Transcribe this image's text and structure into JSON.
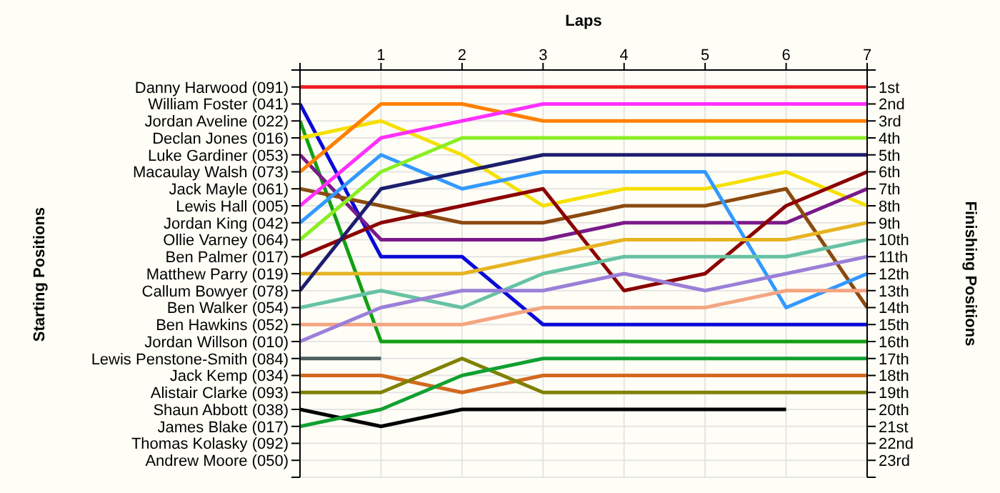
{
  "chart_data": {
    "type": "line",
    "xlabel": "Laps",
    "annotations": [
      "Starting Positions"
    ],
    "y2label": "Finishing Positions",
    "x": [
      0,
      1,
      2,
      3,
      4,
      5,
      6,
      7
    ],
    "xlim": [
      0,
      7
    ],
    "xticks": [
      {
        "value": 0,
        "label": null
      },
      1,
      2,
      3,
      4,
      5,
      6,
      7
    ],
    "y_categories": [
      "Danny Harwood (091)",
      "William Foster (041)",
      "Jordan Aveline (022)",
      "Declan Jones (016)",
      "Luke Gardiner (053)",
      "Macaulay Walsh (073)",
      "Jack Mayle (061)",
      "Lewis Hall (005)",
      "Jordan King (042)",
      "Ollie Varney (064)",
      "Ben Palmer (017)",
      "Matthew Parry (019)",
      "Callum Bowyer (078)",
      "Ben Walker (054)",
      "Ben Hawkins (052)",
      "Jordan Willson (010)",
      "Lewis Penstone-Smith (084)",
      "Jack Kemp (034)",
      "Alistair Clarke (093)",
      "Shaun Abbott (038)",
      "James Blake (017)",
      "Thomas Kolasky (092)",
      "Andrew Moore (050)"
    ],
    "y2lim": [
      24,
      0
    ],
    "y2ticks": [
      {
        "value": 0,
        "label": null
      },
      {
        "value": 1,
        "label": "1st"
      },
      {
        "value": 2,
        "label": "2nd"
      },
      {
        "value": 3,
        "label": "3rd"
      },
      {
        "value": 4,
        "label": "4th"
      },
      {
        "value": 5,
        "label": "5th"
      },
      {
        "value": 6,
        "label": "6th"
      },
      {
        "value": 7,
        "label": "7th"
      },
      {
        "value": 8,
        "label": "8th"
      },
      {
        "value": 9,
        "label": "9th"
      },
      {
        "value": 10,
        "label": "10th"
      },
      {
        "value": 11,
        "label": "11th"
      },
      {
        "value": 12,
        "label": "12th"
      },
      {
        "value": 13,
        "label": "13th"
      },
      {
        "value": 14,
        "label": "14th"
      },
      {
        "value": 15,
        "label": "15th"
      },
      {
        "value": 16,
        "label": "16th"
      },
      {
        "value": 17,
        "label": "17th"
      },
      {
        "value": 18,
        "label": "18th"
      },
      {
        "value": 19,
        "label": "19th"
      },
      {
        "value": 20,
        "label": "20th"
      },
      {
        "value": 21,
        "label": "21st"
      },
      {
        "value": 22,
        "label": "22nd"
      },
      {
        "value": 23,
        "label": "23rd"
      },
      {
        "value": 24,
        "label": null
      }
    ],
    "grid": true,
    "marker": "none",
    "legend": false,
    "series": [
      {
        "axis": "y2",
        "color": "#ee1c25",
        "values": [
          1,
          1,
          1,
          1,
          1,
          1,
          1,
          1
        ]
      },
      {
        "axis": "y2",
        "color": "#0a0ad8",
        "values": [
          2,
          11,
          11,
          15,
          15,
          15,
          15,
          15
        ]
      },
      {
        "axis": "y2",
        "color": "#12a012",
        "values": [
          3,
          16,
          16,
          16,
          16,
          16,
          16,
          16
        ]
      },
      {
        "axis": "y2",
        "color": "#f5e000",
        "values": [
          4,
          3,
          5,
          8,
          7,
          7,
          6,
          8
        ]
      },
      {
        "axis": "y2",
        "color": "#7a1a8a",
        "values": [
          5,
          10,
          10,
          10,
          9,
          9,
          9,
          7
        ]
      },
      {
        "axis": "y2",
        "color": "#ff8000",
        "values": [
          6,
          2,
          2,
          3,
          3,
          3,
          3,
          3
        ]
      },
      {
        "axis": "y2",
        "color": "#8b4a10",
        "values": [
          7,
          8,
          9,
          9,
          8,
          8,
          7,
          14
        ]
      },
      {
        "axis": "y2",
        "color": "#ff30ff",
        "values": [
          8,
          4,
          3,
          2,
          2,
          2,
          2,
          2
        ]
      },
      {
        "axis": "y2",
        "color": "#3399ff",
        "values": [
          9,
          5,
          7,
          6,
          6,
          6,
          14,
          12
        ]
      },
      {
        "axis": "y2",
        "color": "#88ee22",
        "values": [
          10,
          6,
          4,
          4,
          4,
          4,
          4,
          4
        ]
      },
      {
        "axis": "y2",
        "color": "#8b0000",
        "values": [
          11,
          9,
          8,
          7,
          13,
          12,
          8,
          6
        ]
      },
      {
        "axis": "y2",
        "color": "#e6b422",
        "values": [
          12,
          12,
          12,
          11,
          10,
          10,
          10,
          9
        ]
      },
      {
        "axis": "y2",
        "color": "#1e1e6e",
        "values": [
          13,
          7,
          6,
          5,
          5,
          5,
          5,
          5
        ]
      },
      {
        "axis": "y2",
        "color": "#66c2a5",
        "values": [
          14,
          13,
          14,
          12,
          11,
          11,
          11,
          10
        ]
      },
      {
        "axis": "y2",
        "color": "#f4a582",
        "values": [
          15,
          15,
          15,
          14,
          14,
          14,
          13,
          13
        ]
      },
      {
        "axis": "y2",
        "color": "#9b7fd8",
        "values": [
          16,
          14,
          13,
          13,
          12,
          13,
          12,
          11
        ]
      },
      {
        "axis": "y2",
        "color": "#4d5e5e",
        "values": [
          17,
          17,
          null,
          null,
          null,
          null,
          null,
          null
        ]
      },
      {
        "axis": "y2",
        "color": "#d2691e",
        "values": [
          18,
          18,
          19,
          18,
          18,
          18,
          18,
          18
        ]
      },
      {
        "axis": "y2",
        "color": "#808000",
        "values": [
          19,
          19,
          17,
          19,
          19,
          19,
          19,
          19
        ]
      },
      {
        "axis": "y2",
        "color": "#000000",
        "values": [
          20,
          21,
          20,
          20,
          20,
          20,
          20,
          null
        ]
      },
      {
        "axis": "y2",
        "color": "#10a030",
        "values": [
          21,
          20,
          18,
          17,
          17,
          17,
          17,
          17
        ]
      }
    ]
  }
}
